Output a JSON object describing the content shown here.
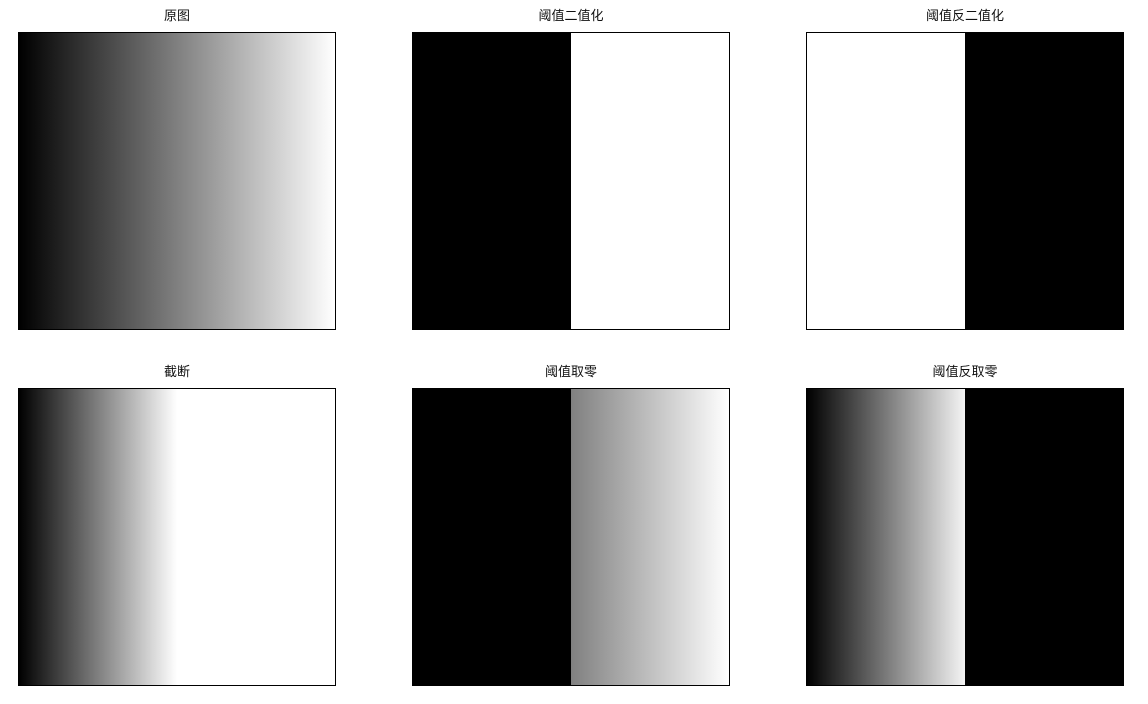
{
  "figure": {
    "panels": [
      {
        "title": "原图",
        "image_kind": "horizontal-gradient",
        "gradient": {
          "black_until": 0.0,
          "white_from": 1.0
        }
      },
      {
        "title": "阈值二值化",
        "image_kind": "split",
        "split": {
          "left_color": "#000000",
          "right_color": "#ffffff",
          "at": 0.5
        }
      },
      {
        "title": "阈值反二值化",
        "image_kind": "split",
        "split": {
          "left_color": "#ffffff",
          "right_color": "#000000",
          "at": 0.5
        }
      },
      {
        "title": "截断",
        "image_kind": "gradient-then-white",
        "gradient": {
          "black_until": 0.0,
          "white_from": 0.5
        }
      },
      {
        "title": "阈值取零",
        "image_kind": "black-then-gradient",
        "gradient": {
          "black_until": 0.5,
          "start_gray": "#808080",
          "end_gray": "#ffffff"
        }
      },
      {
        "title": "阈值反取零",
        "image_kind": "gradient-then-black",
        "gradient": {
          "start_gray": "#000000",
          "end_gray": "#f4f4f4",
          "black_from": 0.5
        }
      }
    ]
  }
}
